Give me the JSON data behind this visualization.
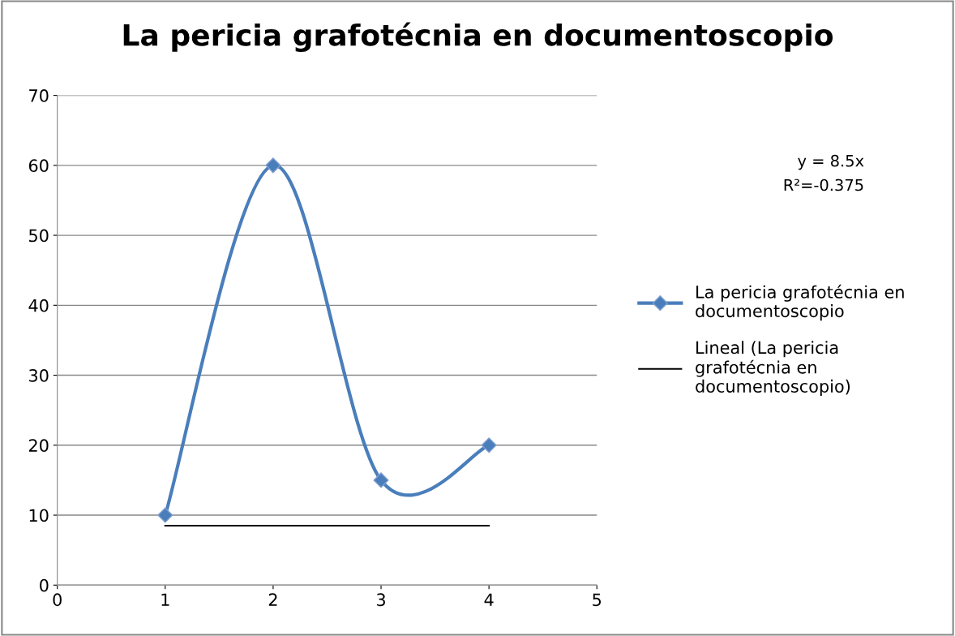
{
  "chart_data": {
    "type": "line",
    "title": "La pericia grafotécnia en documentoscopio",
    "x": [
      1,
      2,
      3,
      4
    ],
    "series": [
      {
        "name": "La pericia grafotécnia en documentoscopio",
        "color": "#4a7ebb",
        "values": [
          10,
          60,
          15,
          20
        ],
        "marker": "diamond"
      },
      {
        "name": "Lineal (La pericia grafotécnia en documentoscopio)",
        "color": "#000000",
        "x": [
          1,
          4
        ],
        "values": [
          8.5,
          8.5
        ],
        "marker": "none"
      }
    ],
    "annotations": [
      "y = 8.5x",
      "R²=-0.375"
    ],
    "xlim": [
      0,
      5
    ],
    "xticks": [
      0,
      1,
      2,
      3,
      4,
      5
    ],
    "ylim": [
      0,
      70
    ],
    "yticks": [
      0,
      10,
      20,
      30,
      40,
      50,
      60,
      70
    ],
    "grid": "y",
    "legend": "right"
  }
}
